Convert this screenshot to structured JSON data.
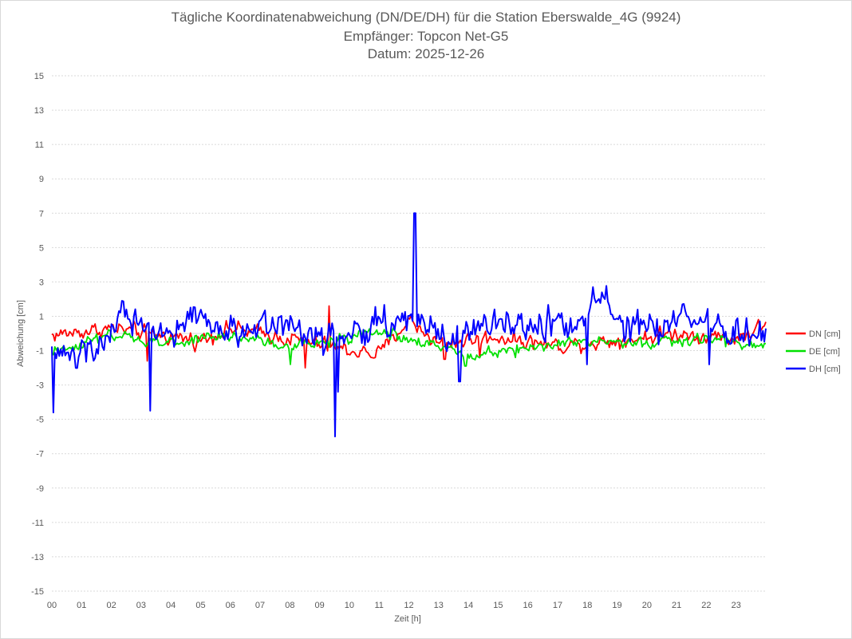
{
  "chart_data": {
    "type": "line",
    "title": "Tägliche Koordinatenabweichung (DN/DE/DH) für die Station Eberswalde_4G (9924)",
    "subtitle": "Empfänger: Topcon Net-G5",
    "date_label": "Datum: 2025-12-26",
    "xlabel": "Zeit [h]",
    "ylabel": "Abweichung [cm]",
    "xlim": [
      0,
      24
    ],
    "ylim": [
      -15,
      15
    ],
    "x_ticks": [
      "00",
      "01",
      "02",
      "03",
      "04",
      "05",
      "06",
      "07",
      "08",
      "09",
      "10",
      "11",
      "12",
      "13",
      "14",
      "15",
      "16",
      "17",
      "18",
      "19",
      "20",
      "21",
      "22",
      "23"
    ],
    "y_ticks": [
      15,
      13,
      11,
      9,
      7,
      5,
      3,
      1,
      -1,
      -3,
      -5,
      -7,
      -9,
      -11,
      -13,
      -15
    ],
    "grid": true,
    "legend_position": "right",
    "sample_count": 480,
    "series": [
      {
        "name": "DN [cm]",
        "color": "#ff0000",
        "baseline": [
          [
            0,
            -0.1
          ],
          [
            2,
            0.3
          ],
          [
            5,
            -0.4
          ],
          [
            6,
            0.3
          ],
          [
            8,
            -0.3
          ],
          [
            10,
            -1.0
          ],
          [
            11,
            -1.2
          ],
          [
            12,
            0.8
          ],
          [
            13,
            -0.6
          ],
          [
            15,
            -0.2
          ],
          [
            17,
            -0.7
          ],
          [
            19,
            -0.4
          ],
          [
            21,
            0.0
          ],
          [
            23,
            -0.3
          ],
          [
            24,
            0.5
          ]
        ],
        "noise": 0.45,
        "spikes": [
          [
            3.2,
            -1.6
          ],
          [
            8.5,
            -2.0
          ],
          [
            9.3,
            1.6
          ],
          [
            13.2,
            -1.5
          ],
          [
            14.4,
            -1.4
          ]
        ]
      },
      {
        "name": "DE [cm]",
        "color": "#00e000",
        "baseline": [
          [
            0,
            -1.2
          ],
          [
            1,
            -0.5
          ],
          [
            2,
            -0.2
          ],
          [
            4,
            -0.6
          ],
          [
            6,
            -0.1
          ],
          [
            8,
            -0.8
          ],
          [
            10,
            -0.3
          ],
          [
            11,
            0.2
          ],
          [
            12,
            -0.4
          ],
          [
            14,
            -1.2
          ],
          [
            16,
            -0.8
          ],
          [
            18,
            -0.5
          ],
          [
            20,
            -0.6
          ],
          [
            22,
            -0.3
          ],
          [
            24,
            -0.8
          ]
        ],
        "noise": 0.35,
        "spikes": [
          [
            8.0,
            -1.8
          ],
          [
            13.9,
            -1.9
          ],
          [
            15.6,
            -1.4
          ]
        ]
      },
      {
        "name": "DH [cm]",
        "color": "#0000ff",
        "baseline": [
          [
            0,
            -1.0
          ],
          [
            1.3,
            -1.5
          ],
          [
            2.4,
            1.3
          ],
          [
            3.0,
            0.2
          ],
          [
            3.8,
            -0.5
          ],
          [
            4.8,
            1.2
          ],
          [
            6.0,
            0.0
          ],
          [
            7.5,
            0.8
          ],
          [
            9.5,
            -0.4
          ],
          [
            11.0,
            0.5
          ],
          [
            12.3,
            1.0
          ],
          [
            13.5,
            -0.4
          ],
          [
            15.0,
            0.3
          ],
          [
            16.5,
            0.6
          ],
          [
            17.5,
            0.4
          ],
          [
            18.6,
            2.4
          ],
          [
            19.3,
            0.3
          ],
          [
            20.5,
            0.0
          ],
          [
            21.3,
            1.2
          ],
          [
            23.0,
            -0.2
          ],
          [
            24.0,
            0.1
          ]
        ],
        "noise": 0.95,
        "spikes": [
          [
            0.05,
            -4.6
          ],
          [
            3.3,
            -4.5
          ],
          [
            9.5,
            -6.0
          ],
          [
            9.6,
            -3.4
          ],
          [
            12.2,
            7.0
          ],
          [
            13.7,
            -2.8
          ],
          [
            18.0,
            -1.8
          ],
          [
            22.1,
            -1.8
          ]
        ]
      }
    ]
  }
}
